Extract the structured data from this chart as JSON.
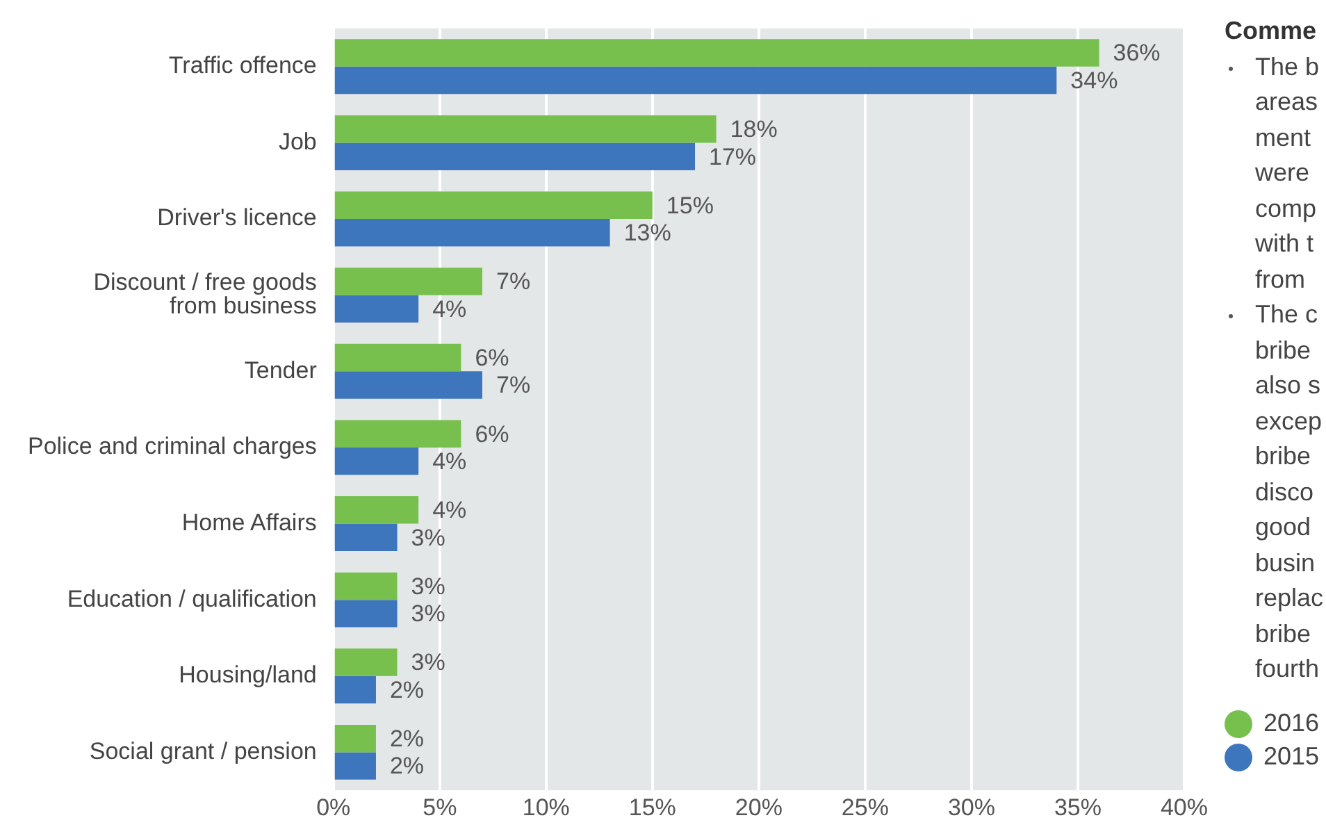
{
  "chart_data": {
    "type": "bar",
    "orientation": "horizontal",
    "categories": [
      "Traffic offence",
      "Job",
      "Driver's licence",
      "Discount / free goods from business",
      "Tender",
      "Police and criminal charges",
      "Home Affairs",
      "Education / qualification",
      "Housing/land",
      "Social grant / pension"
    ],
    "series": [
      {
        "name": "2016",
        "color": "#77c04d",
        "values": [
          36,
          18,
          15,
          7,
          6,
          6,
          4,
          3,
          3,
          2
        ],
        "value_labels": [
          "36%",
          "18%",
          "15%",
          "7%",
          "6%",
          "6%",
          "4%",
          "3%",
          "3%",
          "2%"
        ]
      },
      {
        "name": "2015",
        "color": "#3d76bc",
        "values": [
          34,
          17,
          13,
          4,
          7,
          4,
          3,
          3,
          2,
          2
        ],
        "value_labels": [
          "34%",
          "17%",
          "13%",
          "4%",
          "7%",
          "4%",
          "3%",
          "3%",
          "2%",
          "2%"
        ]
      }
    ],
    "xlim": [
      0,
      40
    ],
    "xticks": [
      {
        "value": 0,
        "label": "0%"
      },
      {
        "value": 5,
        "label": "5%"
      },
      {
        "value": 10,
        "label": "10%"
      },
      {
        "value": 15,
        "label": "15%"
      },
      {
        "value": 20,
        "label": "20%"
      },
      {
        "value": 25,
        "label": "25%"
      },
      {
        "value": 30,
        "label": "30%"
      },
      {
        "value": 35,
        "label": "35%"
      },
      {
        "value": 40,
        "label": "40%"
      }
    ],
    "grid": "x",
    "legend": "right",
    "annotations": [
      "Comme",
      "The b\nareas\nment\nwere\ncomp\nwith t\nfrom",
      "The c\nbribe\nalso s\nexcep\nbribe\ndisco\ngood\nbusin\nreplac\nbribe\nfourth"
    ]
  }
}
